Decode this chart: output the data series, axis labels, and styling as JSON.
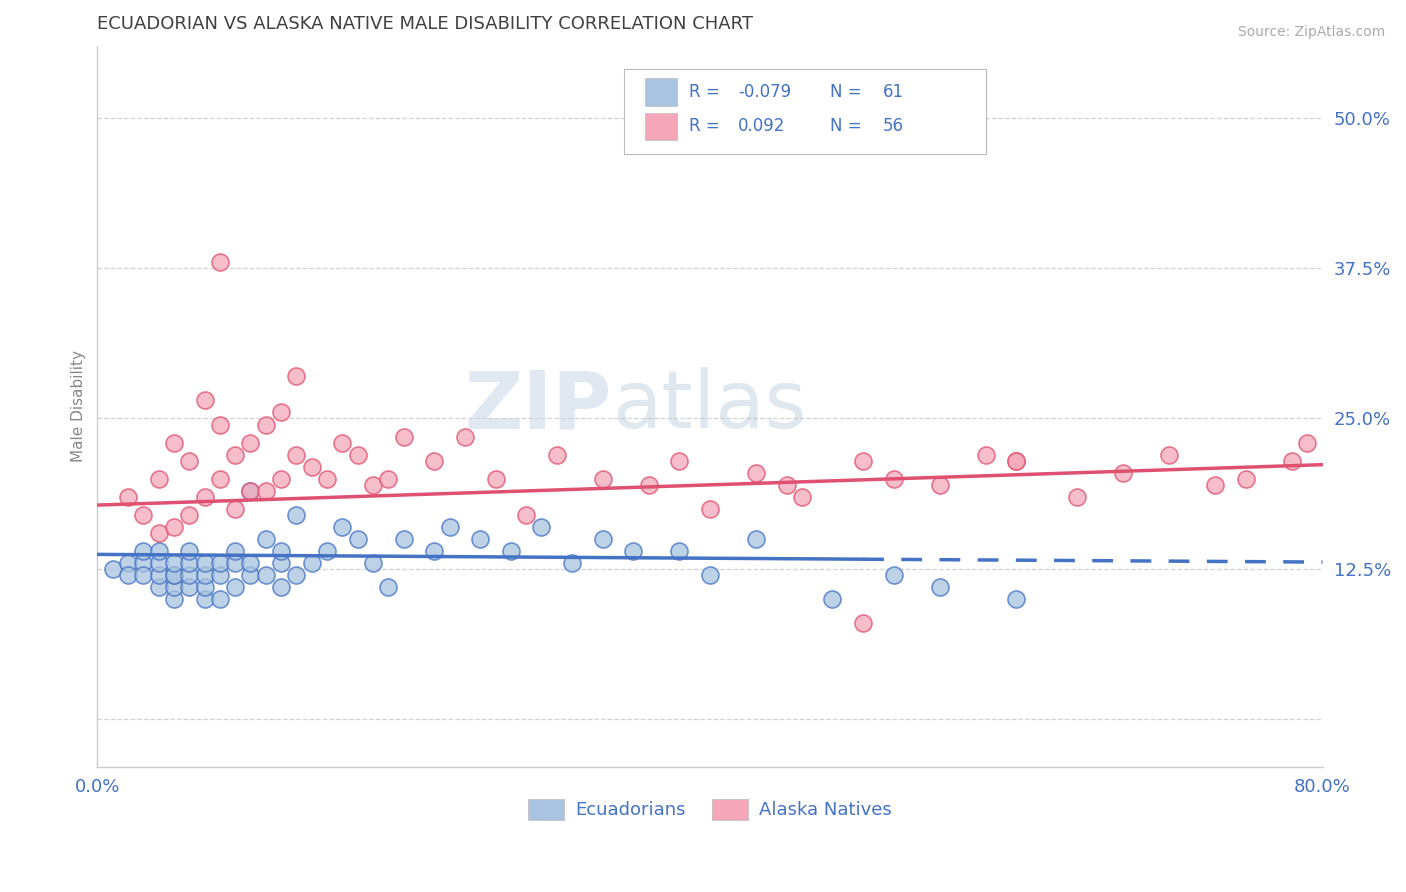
{
  "title": "ECUADORIAN VS ALASKA NATIVE MALE DISABILITY CORRELATION CHART",
  "source": "Source: ZipAtlas.com",
  "ylabel": "Male Disability",
  "xlim": [
    0.0,
    0.8
  ],
  "ylim": [
    -0.04,
    0.56
  ],
  "yticks": [
    0.0,
    0.125,
    0.25,
    0.375,
    0.5
  ],
  "ytick_labels": [
    "",
    "12.5%",
    "25.0%",
    "37.5%",
    "50.0%"
  ],
  "xticks": [
    0.0,
    0.1,
    0.2,
    0.3,
    0.4,
    0.5,
    0.6,
    0.7,
    0.8
  ],
  "xtick_labels": [
    "0.0%",
    "",
    "",
    "",
    "",
    "",
    "",
    "",
    "80.0%"
  ],
  "R_blue": -0.079,
  "N_blue": 61,
  "R_pink": 0.092,
  "N_pink": 56,
  "blue_color": "#a8c4e0",
  "pink_color": "#f4a7b9",
  "blue_line_color": "#4472c4",
  "pink_line_color": "#e05070",
  "title_color": "#404040",
  "axis_color": "#4472c4",
  "grid_color": "#c8c8c8",
  "background_color": "#ffffff",
  "blue_scatter_x": [
    0.01,
    0.02,
    0.02,
    0.03,
    0.03,
    0.03,
    0.04,
    0.04,
    0.04,
    0.04,
    0.05,
    0.05,
    0.05,
    0.05,
    0.05,
    0.06,
    0.06,
    0.06,
    0.06,
    0.07,
    0.07,
    0.07,
    0.07,
    0.08,
    0.08,
    0.08,
    0.09,
    0.09,
    0.09,
    0.1,
    0.1,
    0.1,
    0.11,
    0.11,
    0.12,
    0.12,
    0.12,
    0.13,
    0.13,
    0.14,
    0.15,
    0.16,
    0.17,
    0.18,
    0.19,
    0.2,
    0.22,
    0.23,
    0.25,
    0.27,
    0.29,
    0.31,
    0.33,
    0.35,
    0.38,
    0.4,
    0.43,
    0.48,
    0.52,
    0.55,
    0.6
  ],
  "blue_scatter_y": [
    0.125,
    0.13,
    0.12,
    0.13,
    0.14,
    0.12,
    0.11,
    0.12,
    0.13,
    0.14,
    0.1,
    0.11,
    0.12,
    0.12,
    0.13,
    0.11,
    0.12,
    0.13,
    0.14,
    0.1,
    0.11,
    0.12,
    0.13,
    0.1,
    0.12,
    0.13,
    0.11,
    0.13,
    0.14,
    0.12,
    0.13,
    0.19,
    0.12,
    0.15,
    0.11,
    0.13,
    0.14,
    0.12,
    0.17,
    0.13,
    0.14,
    0.16,
    0.15,
    0.13,
    0.11,
    0.15,
    0.14,
    0.16,
    0.15,
    0.14,
    0.16,
    0.13,
    0.15,
    0.14,
    0.14,
    0.12,
    0.15,
    0.1,
    0.12,
    0.11,
    0.1
  ],
  "pink_scatter_x": [
    0.02,
    0.03,
    0.04,
    0.04,
    0.05,
    0.05,
    0.06,
    0.06,
    0.07,
    0.07,
    0.08,
    0.08,
    0.09,
    0.09,
    0.1,
    0.1,
    0.11,
    0.11,
    0.12,
    0.12,
    0.13,
    0.14,
    0.15,
    0.16,
    0.17,
    0.18,
    0.19,
    0.2,
    0.22,
    0.24,
    0.26,
    0.28,
    0.3,
    0.33,
    0.36,
    0.38,
    0.4,
    0.43,
    0.46,
    0.5,
    0.52,
    0.55,
    0.58,
    0.6,
    0.64,
    0.67,
    0.7,
    0.73,
    0.75,
    0.78,
    0.79,
    0.5,
    0.45,
    0.6,
    0.08,
    0.13
  ],
  "pink_scatter_y": [
    0.185,
    0.17,
    0.155,
    0.2,
    0.16,
    0.23,
    0.17,
    0.215,
    0.185,
    0.265,
    0.2,
    0.245,
    0.175,
    0.22,
    0.19,
    0.23,
    0.19,
    0.245,
    0.2,
    0.255,
    0.22,
    0.21,
    0.2,
    0.23,
    0.22,
    0.195,
    0.2,
    0.235,
    0.215,
    0.235,
    0.2,
    0.17,
    0.22,
    0.2,
    0.195,
    0.215,
    0.175,
    0.205,
    0.185,
    0.215,
    0.2,
    0.195,
    0.22,
    0.215,
    0.185,
    0.205,
    0.22,
    0.195,
    0.2,
    0.215,
    0.23,
    0.08,
    0.195,
    0.215,
    0.38,
    0.285
  ],
  "blue_line_x0": 0.0,
  "blue_line_x_solid_end": 0.5,
  "blue_line_x_dash_end": 0.8,
  "blue_line_y0": 0.137,
  "blue_line_slope": -0.008,
  "pink_line_y0": 0.178,
  "pink_line_slope": 0.042
}
